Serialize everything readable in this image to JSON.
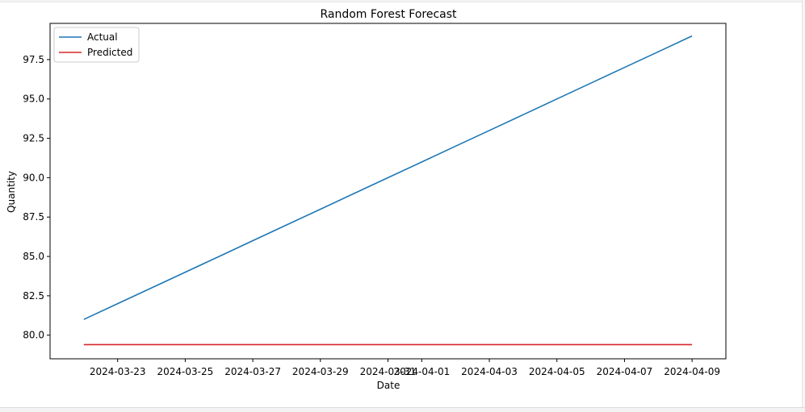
{
  "chart_data": {
    "type": "line",
    "title": "Random Forest Forecast",
    "xlabel": "Date",
    "ylabel": "Quantity",
    "x_start": "2024-03-22",
    "x": [
      "2024-03-22",
      "2024-03-23",
      "2024-03-24",
      "2024-03-25",
      "2024-03-26",
      "2024-03-27",
      "2024-03-28",
      "2024-03-29",
      "2024-03-30",
      "2024-03-31",
      "2024-04-01",
      "2024-04-02",
      "2024-04-03",
      "2024-04-04",
      "2024-04-05",
      "2024-04-06",
      "2024-04-07",
      "2024-04-08",
      "2024-04-09"
    ],
    "xlim": [
      "2024-03-21",
      "2024-04-10"
    ],
    "ylim": [
      78.5,
      99.8
    ],
    "xticks": [
      "2024-03-23",
      "2024-03-25",
      "2024-03-27",
      "2024-03-29",
      "2024-03-31",
      "2024-04-01",
      "2024-04-03",
      "2024-04-05",
      "2024-04-07",
      "2024-04-09"
    ],
    "yticks": [
      80.0,
      82.5,
      85.0,
      87.5,
      90.0,
      92.5,
      95.0,
      97.5
    ],
    "ytick_labels": [
      "80.0",
      "82.5",
      "85.0",
      "87.5",
      "90.0",
      "92.5",
      "95.0",
      "97.5"
    ],
    "series": [
      {
        "name": "Actual",
        "color": "#1f77b4",
        "values": [
          81,
          82,
          83,
          84,
          85,
          86,
          87,
          88,
          89,
          90,
          91,
          92,
          93,
          94,
          95,
          96,
          97,
          98,
          99
        ]
      },
      {
        "name": "Predicted",
        "color": "#d62728",
        "values": [
          79.4,
          79.4,
          79.4,
          79.4,
          79.4,
          79.4,
          79.4,
          79.4,
          79.4,
          79.4,
          79.4,
          79.4,
          79.4,
          79.4,
          79.4,
          79.4,
          79.4,
          79.4,
          79.4
        ]
      }
    ],
    "grid": false,
    "legend_position": "top-left"
  }
}
